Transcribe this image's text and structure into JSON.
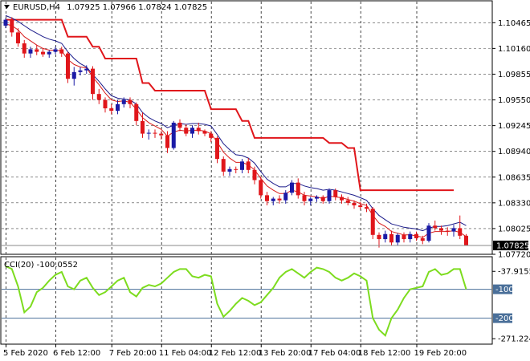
{
  "window": {
    "title": "EURUSD,H4",
    "quote": "1.07925 1.07966 1.07824 1.07825",
    "menu_icon": "triangle-down-icon"
  },
  "indicator": {
    "title": "CCI(20) -100.0552"
  },
  "colors": {
    "bull": "#1a1aa6",
    "bear": "#e0161b",
    "ma_fast": "#d81b1b",
    "ma_slow": "#1b1b8a",
    "channel": "#e0161b",
    "cci": "#7ddc1f",
    "level": "#4a6f99",
    "grid": "#444444"
  },
  "chart_data": [
    {
      "type": "candlestick",
      "title": "EURUSD,H4",
      "ylim": [
        1.0772,
        1.1062
      ],
      "y_ticks": [
        "1.10465",
        "1.10160",
        "1.09855",
        "1.09550",
        "1.09245",
        "1.08940",
        "1.08635",
        "1.08330",
        "1.08025",
        "1.07720"
      ],
      "current_price": "1.07825",
      "x_ticks": [
        "5 Feb 2020",
        "6 Feb 12:00",
        "7 Feb 20:00",
        "11 Feb 04:00",
        "12 Feb 12:00",
        "13 Feb 20:00",
        "17 Feb 04:00",
        "18 Feb 12:00",
        "19 Feb 20:00"
      ],
      "candles": [
        [
          1.1043,
          1.1052,
          1.104,
          1.105
        ],
        [
          1.105,
          1.1053,
          1.103,
          1.1035
        ],
        [
          1.1035,
          1.104,
          1.1018,
          1.1022
        ],
        [
          1.1022,
          1.1026,
          1.1005,
          1.101
        ],
        [
          1.101,
          1.1018,
          1.1005,
          1.1015
        ],
        [
          1.1015,
          1.102,
          1.1008,
          1.1012
        ],
        [
          1.1012,
          1.1016,
          1.1006,
          1.1009
        ],
        [
          1.1009,
          1.1014,
          1.1005,
          1.1012
        ],
        [
          1.1012,
          1.1018,
          1.1009,
          1.1015
        ],
        [
          1.1015,
          1.1018,
          1.1006,
          1.101
        ],
        [
          1.101,
          1.1012,
          1.0975,
          1.098
        ],
        [
          1.098,
          1.0994,
          1.0972,
          1.0988
        ],
        [
          1.0988,
          1.0994,
          1.0984,
          1.099
        ],
        [
          1.099,
          1.0996,
          1.0986,
          1.0992
        ],
        [
          1.0992,
          1.0995,
          1.0955,
          1.0962
        ],
        [
          1.0962,
          1.0968,
          1.095,
          1.0955
        ],
        [
          1.0955,
          1.0958,
          1.094,
          1.0945
        ],
        [
          1.0945,
          1.095,
          1.0938,
          1.0942
        ],
        [
          1.0942,
          1.0955,
          1.0938,
          1.095
        ],
        [
          1.095,
          1.0958,
          1.0946,
          1.0955
        ],
        [
          1.0955,
          1.0958,
          1.0945,
          1.095
        ],
        [
          1.095,
          1.0952,
          1.0925,
          1.093
        ],
        [
          1.093,
          1.094,
          1.091,
          1.0915
        ],
        [
          1.0915,
          1.092,
          1.0908,
          1.0916
        ],
        [
          1.0916,
          1.092,
          1.091,
          1.0915
        ],
        [
          1.0915,
          1.0918,
          1.0908,
          1.0913
        ],
        [
          1.0913,
          1.0918,
          1.0892,
          1.0898
        ],
        [
          1.0898,
          1.093,
          1.0896,
          1.0928
        ],
        [
          1.0928,
          1.0932,
          1.0918,
          1.0922
        ],
        [
          1.0922,
          1.0926,
          1.0912,
          1.0915
        ],
        [
          1.0915,
          1.0925,
          1.091,
          1.0922
        ],
        [
          1.0922,
          1.0928,
          1.0914,
          1.0918
        ],
        [
          1.0918,
          1.092,
          1.0912,
          1.0915
        ],
        [
          1.0915,
          1.0918,
          1.0905,
          1.091
        ],
        [
          1.091,
          1.0912,
          1.088,
          1.0885
        ],
        [
          1.0885,
          1.0888,
          1.0865,
          1.087
        ],
        [
          1.087,
          1.0876,
          1.0865,
          1.0873
        ],
        [
          1.0873,
          1.0876,
          1.0868,
          1.0872
        ],
        [
          1.0872,
          1.0885,
          1.0868,
          1.0882
        ],
        [
          1.0882,
          1.0886,
          1.0868,
          1.0872
        ],
        [
          1.0872,
          1.0876,
          1.0855,
          1.086
        ],
        [
          1.086,
          1.0864,
          1.0838,
          1.0842
        ],
        [
          1.0842,
          1.0846,
          1.083,
          1.0835
        ],
        [
          1.0835,
          1.084,
          1.083,
          1.0838
        ],
        [
          1.0838,
          1.0842,
          1.0832,
          1.0836
        ],
        [
          1.0836,
          1.0848,
          1.0832,
          1.0845
        ],
        [
          1.0845,
          1.086,
          1.0842,
          1.0857
        ],
        [
          1.0857,
          1.0862,
          1.0838,
          1.0842
        ],
        [
          1.0842,
          1.0846,
          1.083,
          1.0835
        ],
        [
          1.0835,
          1.084,
          1.083,
          1.0838
        ],
        [
          1.0838,
          1.0842,
          1.0834,
          1.084
        ],
        [
          1.084,
          1.0842,
          1.0832,
          1.0835
        ],
        [
          1.0835,
          1.085,
          1.0832,
          1.0848
        ],
        [
          1.0848,
          1.085,
          1.0836,
          1.084
        ],
        [
          1.084,
          1.0843,
          1.0832,
          1.0836
        ],
        [
          1.0836,
          1.084,
          1.083,
          1.0833
        ],
        [
          1.0833,
          1.0836,
          1.0826,
          1.083
        ],
        [
          1.083,
          1.0834,
          1.0825,
          1.0828
        ],
        [
          1.0828,
          1.0832,
          1.0822,
          1.0826
        ],
        [
          1.0826,
          1.0828,
          1.079,
          1.0795
        ],
        [
          1.0795,
          1.0798,
          1.078,
          1.079
        ],
        [
          1.079,
          1.08,
          1.0786,
          1.0796
        ],
        [
          1.0796,
          1.08,
          1.0782,
          1.0786
        ],
        [
          1.0786,
          1.0797,
          1.0782,
          1.0795
        ],
        [
          1.0795,
          1.0798,
          1.0786,
          1.079
        ],
        [
          1.079,
          1.0799,
          1.0786,
          1.0796
        ],
        [
          1.0796,
          1.0799,
          1.0788,
          1.0791
        ],
        [
          1.0791,
          1.0794,
          1.0784,
          1.0788
        ],
        [
          1.0788,
          1.0809,
          1.0786,
          1.0806
        ],
        [
          1.0806,
          1.0812,
          1.08,
          1.0803
        ],
        [
          1.0803,
          1.0806,
          1.0795,
          1.08
        ],
        [
          1.08,
          1.0804,
          1.0794,
          1.0799
        ],
        [
          1.0799,
          1.0807,
          1.0793,
          1.0803
        ],
        [
          1.0803,
          1.0818,
          1.079,
          1.0794
        ],
        [
          1.0794,
          1.0796,
          1.0782,
          1.07825
        ]
      ],
      "channel_upper": [
        1.105,
        1.105,
        1.105,
        1.105,
        1.105,
        1.105,
        1.105,
        1.105,
        1.105,
        1.105,
        1.103,
        1.103,
        1.103,
        1.103,
        1.1018,
        1.1018,
        1.1004,
        1.1004,
        1.1004,
        1.1004,
        1.1004,
        1.1004,
        1.0975,
        1.0975,
        1.0966,
        1.0966,
        1.0966,
        1.0966,
        1.0966,
        1.0966,
        1.0966,
        1.0966,
        1.0966,
        1.0944,
        1.0944,
        1.0944,
        1.0944,
        1.0944,
        1.093,
        1.093,
        1.091,
        1.091,
        1.091,
        1.091,
        1.091,
        1.091,
        1.091,
        1.091,
        1.091,
        1.091,
        1.091,
        1.091,
        1.0904,
        1.0904,
        1.0904,
        1.0898,
        1.0898,
        1.0848,
        1.0848,
        1.0848,
        1.0848,
        1.0848,
        1.0848,
        1.0848,
        1.0848,
        1.0848,
        1.0848,
        1.0848,
        1.0848,
        1.0848,
        1.0848,
        1.0848,
        1.0848
      ],
      "ma_fast": [
        1.1045,
        1.1043,
        1.1038,
        1.103,
        1.1025,
        1.102,
        1.1016,
        1.1014,
        1.1014,
        1.1013,
        1.1003,
        1.0997,
        1.0994,
        1.0993,
        1.0982,
        1.0973,
        1.0963,
        1.0955,
        1.0953,
        1.0954,
        1.0952,
        1.0944,
        1.0934,
        1.0928,
        1.0924,
        1.092,
        1.0912,
        1.0917,
        1.0919,
        1.0918,
        1.0919,
        1.0919,
        1.0918,
        1.0915,
        1.0905,
        1.0893,
        1.0886,
        1.0881,
        1.0881,
        1.0878,
        1.0872,
        1.0862,
        1.0853,
        1.0848,
        1.0844,
        1.0844,
        1.0848,
        1.0846,
        1.0842,
        1.0841,
        1.084,
        1.0838,
        1.0841,
        1.084,
        1.0839,
        1.0837,
        1.0835,
        1.0832,
        1.083,
        1.0818,
        1.0809,
        1.0805,
        1.0799,
        1.0797,
        1.0795,
        1.0795,
        1.0794,
        1.0792,
        1.0797,
        1.0799,
        1.0799,
        1.0799,
        1.08,
        1.0798,
        1.0793
      ],
      "ma_slow": [
        1.1055,
        1.1052,
        1.1048,
        1.1043,
        1.1038,
        1.1034,
        1.103,
        1.1027,
        1.1025,
        1.1022,
        1.1012,
        1.1004,
        1.0998,
        1.0994,
        1.0985,
        1.0977,
        1.0968,
        1.096,
        1.0957,
        1.0956,
        1.0955,
        1.095,
        1.094,
        1.0934,
        1.093,
        1.0927,
        1.0922,
        1.0925,
        1.0927,
        1.0926,
        1.0927,
        1.0927,
        1.0926,
        1.0924,
        1.0914,
        1.0903,
        1.0896,
        1.089,
        1.0889,
        1.0886,
        1.088,
        1.087,
        1.0861,
        1.0856,
        1.0852,
        1.0852,
        1.0856,
        1.0856,
        1.0853,
        1.0851,
        1.085,
        1.0848,
        1.0849,
        1.0848,
        1.0846,
        1.0844,
        1.0842,
        1.0839,
        1.0836,
        1.0826,
        1.0818,
        1.0813,
        1.0808,
        1.0806,
        1.0804,
        1.0803,
        1.0802,
        1.08,
        1.0803,
        1.0805,
        1.0805,
        1.0806,
        1.0808,
        1.081,
        1.0806
      ]
    },
    {
      "type": "line",
      "title": "CCI(20) -100.0552",
      "ylim": [
        -290,
        10
      ],
      "y_ticks": [
        "-37.9155",
        "-100",
        "-200",
        "-271.2248"
      ],
      "levels": [
        -100,
        -200
      ],
      "series": [
        {
          "values": [
            -20,
            -30,
            -90,
            -180,
            -160,
            -110,
            -95,
            -70,
            -50,
            -40,
            -90,
            -100,
            -70,
            -60,
            -95,
            -120,
            -110,
            -90,
            -70,
            -60,
            -110,
            -125,
            -95,
            -85,
            -90,
            -80,
            -60,
            -40,
            -30,
            -30,
            -55,
            -60,
            -50,
            -55,
            -150,
            -195,
            -175,
            -150,
            -130,
            -140,
            -155,
            -145,
            -120,
            -95,
            -60,
            -40,
            -30,
            -45,
            -60,
            -40,
            -25,
            -30,
            -40,
            -60,
            -70,
            -60,
            -45,
            -55,
            -70,
            -200,
            -240,
            -260,
            -200,
            -170,
            -130,
            -100,
            -95,
            -90,
            -40,
            -30,
            -50,
            -45,
            -30,
            -30,
            -100
          ]
        }
      ]
    }
  ]
}
